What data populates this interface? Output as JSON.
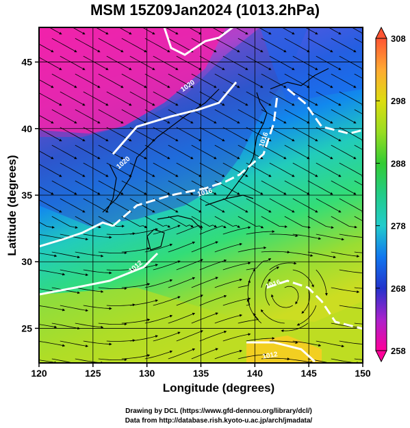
{
  "title": "MSM 15Z09Jan2024 (1013.2hPa)",
  "axes": {
    "xlabel": "Longitude (degrees)",
    "ylabel": "Latitude  (degrees)",
    "x_ticks": [
      "120",
      "125",
      "130",
      "135",
      "140",
      "145",
      "150"
    ],
    "y_ticks": [
      "25",
      "30",
      "35",
      "40",
      "45"
    ],
    "xlim": [
      120,
      150
    ],
    "ylim": [
      22.4,
      47.6
    ],
    "grid": true
  },
  "colorbar": {
    "ticks": [
      "308",
      "298",
      "288",
      "278",
      "268",
      "258"
    ],
    "range": [
      258,
      308
    ],
    "colors": [
      "#ff0099",
      "#9933cc",
      "#2233cc",
      "#1177ee",
      "#22cccc",
      "#22cc66",
      "#88dd22",
      "#dddd11",
      "#ffaa33",
      "#ff6633"
    ]
  },
  "contours": {
    "labels": [
      "1020",
      "1020",
      "1016",
      "1016",
      "1012",
      "1016",
      "1012"
    ],
    "color": "#ffffff"
  },
  "credits": {
    "line1": "Drawing by DCL (https://www.gfd-dennou.org/library/dcl/)",
    "line2": "Data from http://database.rish.kyoto-u.ac.jp/arch/jmadata/"
  }
}
